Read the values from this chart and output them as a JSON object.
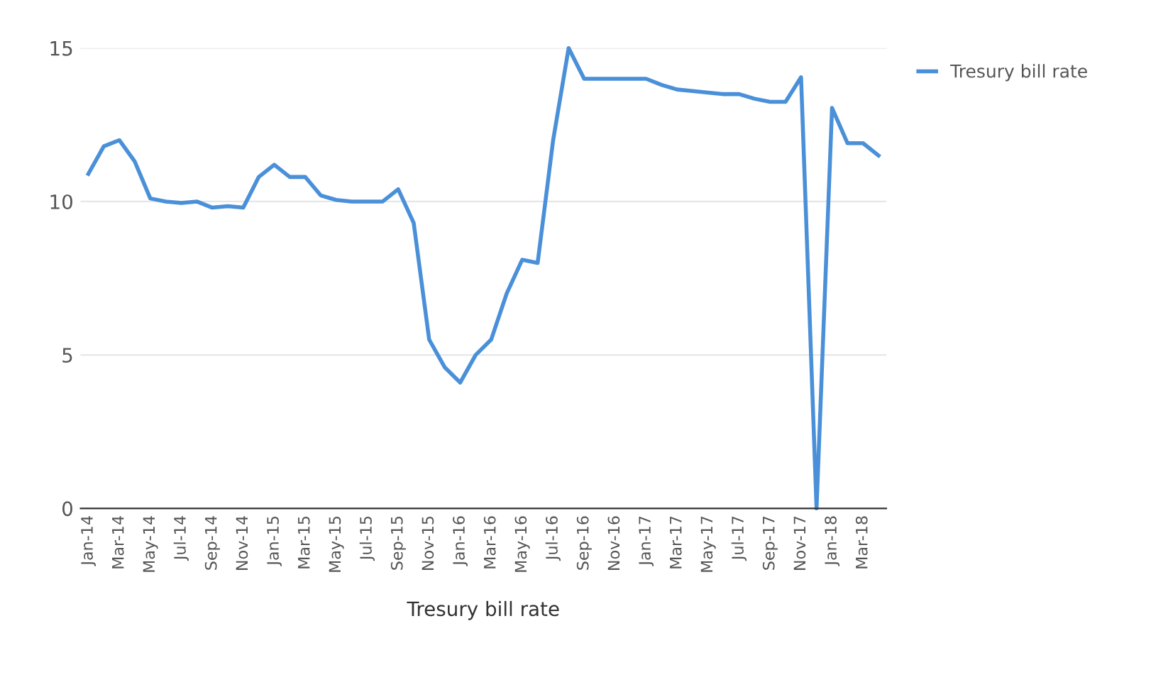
{
  "chart_data": {
    "type": "line",
    "xlabel": "Tresury bill rate",
    "categories": [
      "Jan-14",
      null,
      "Mar-14",
      null,
      "May-14",
      null,
      "Jul-14",
      null,
      "Sep-14",
      null,
      "Nov-14",
      null,
      "Jan-15",
      null,
      "Mar-15",
      null,
      "May-15",
      null,
      "Jul-15",
      null,
      "Sep-15",
      null,
      "Nov-15",
      null,
      "Jan-16",
      null,
      "Mar-16",
      null,
      "May-16",
      null,
      "Jul-16",
      null,
      "Sep-16",
      null,
      "Nov-16",
      null,
      "Jan-17",
      null,
      "Mar-17",
      null,
      "May-17",
      null,
      "Jul-17",
      null,
      "Sep-17",
      null,
      "Nov-17",
      null,
      "Jan-18",
      null,
      "Mar-18",
      null
    ],
    "series": [
      {
        "name": "Tresury bill rate",
        "color": "#4a90d9",
        "values": [
          10.9,
          11.8,
          12.0,
          11.3,
          10.1,
          10.0,
          9.95,
          10.0,
          9.8,
          9.85,
          9.8,
          10.8,
          11.2,
          10.8,
          10.8,
          10.2,
          10.05,
          10.0,
          10.0,
          10.0,
          10.4,
          9.3,
          5.5,
          4.6,
          4.1,
          5.0,
          5.5,
          7.0,
          8.1,
          8.0,
          12.0,
          15.0,
          14.0,
          14.0,
          14.0,
          14.0,
          14.0,
          13.8,
          13.65,
          13.6,
          13.55,
          13.5,
          13.5,
          13.35,
          13.25,
          13.25,
          14.05,
          0,
          13.05,
          11.9,
          11.9,
          11.5
        ]
      }
    ],
    "ylim": [
      0,
      15
    ],
    "yticks": [
      0,
      5,
      10,
      15
    ],
    "grid": "y",
    "legend": "top right",
    "marker": "none",
    "line_style": "solid"
  }
}
